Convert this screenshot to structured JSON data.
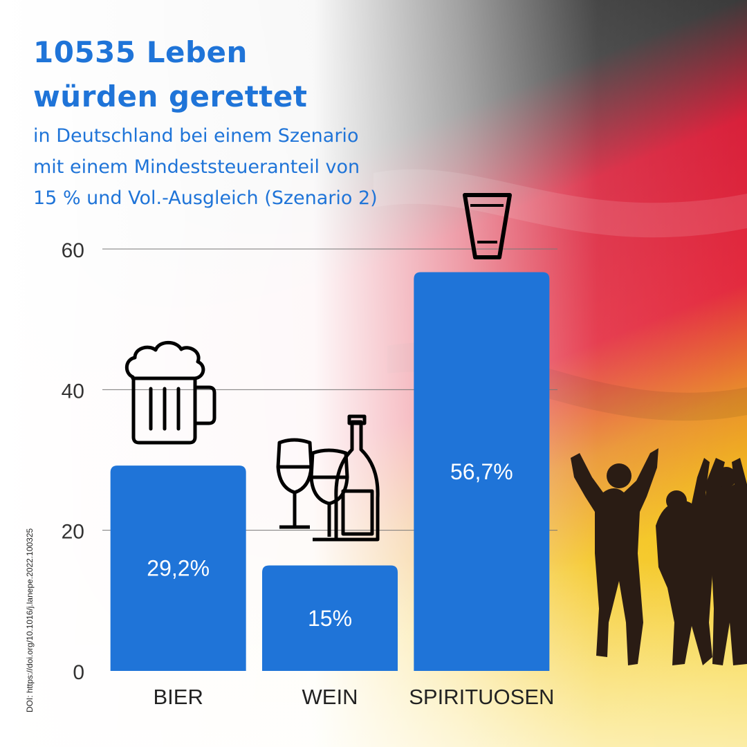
{
  "headline": {
    "line1": "10535 Leben",
    "line2": "würden gerettet"
  },
  "subheadline": {
    "line1": "in Deutschland bei einem Szenario",
    "line2": "mit einem Mindeststeueranteil von",
    "line3": "15 % und Vol.-Ausgleich (Szenario 2)"
  },
  "doi": "DOI: https://doi.org/10.1016/j.lanepe.2022.100325",
  "colors": {
    "bar": "#1f74d8",
    "title": "#1f74d8",
    "flag_black": "#1c1c1c",
    "flag_red": "#e3213a",
    "flag_gold": "#f2c21b"
  },
  "icons": [
    "beer-mug-icon",
    "wine-glasses-bottle-icon",
    "shot-glass-icon",
    "cheering-people-silhouette"
  ],
  "chart_data": {
    "type": "bar",
    "categories": [
      "BIER",
      "WEIN",
      "SPIRITUOSEN"
    ],
    "values": [
      29.2,
      15,
      56.7
    ],
    "data_labels": [
      "29,2%",
      "15%",
      "56,7%"
    ],
    "yticks": [
      0,
      20,
      40,
      60
    ],
    "ylim": [
      0,
      60
    ],
    "grid": true,
    "title": "",
    "xlabel": "",
    "ylabel": ""
  }
}
